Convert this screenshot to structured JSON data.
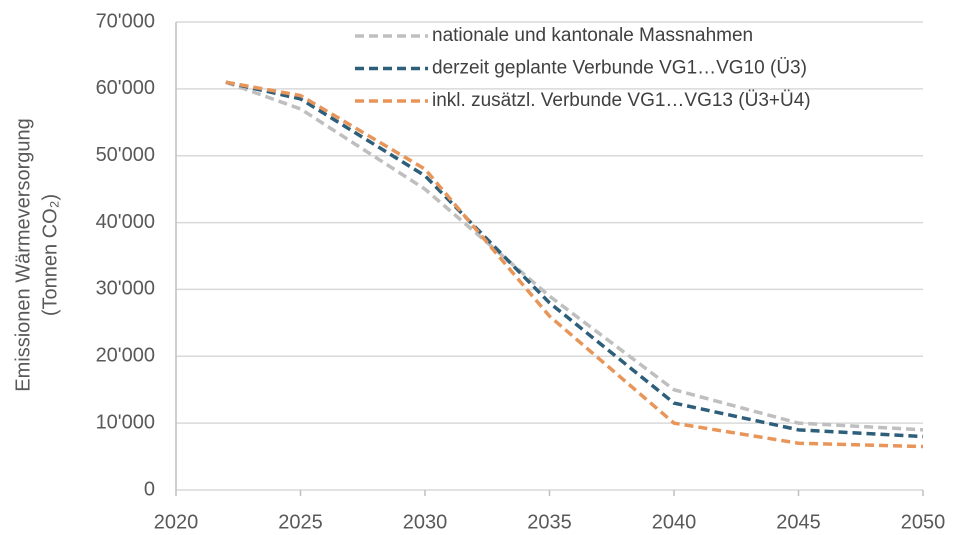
{
  "chart_data": {
    "type": "line",
    "ylabel": [
      "Emissionen Wärmeversorgung",
      "(Tonnen CO₂)"
    ],
    "x": [
      2022,
      2025,
      2030,
      2035,
      2040,
      2045,
      2050
    ],
    "series": [
      {
        "name": "nationale und kantonale Massnahmen",
        "color": "#bfbfbf",
        "values": [
          61000,
          57000,
          45000,
          29000,
          15000,
          10000,
          9000
        ]
      },
      {
        "name": "derzeit geplante Verbunde VG1…VG10 (Ü3)",
        "color": "#2e5f7a",
        "values": [
          61000,
          58500,
          47000,
          28000,
          13000,
          9000,
          8000
        ]
      },
      {
        "name": "inkl. zusätzl. Verbunde VG1…VG13 (Ü3+Ü4)",
        "color": "#e8955a",
        "values": [
          61000,
          59000,
          48000,
          26000,
          10000,
          7000,
          6500
        ]
      }
    ],
    "xlim": [
      2020,
      2050
    ],
    "xticks": [
      2020,
      2025,
      2030,
      2035,
      2040,
      2045,
      2050
    ],
    "ylim": [
      0,
      70000
    ],
    "yticks": [
      0,
      {
        "value": 10000,
        "label": "10'000"
      },
      {
        "value": 20000,
        "label": "20'000"
      },
      {
        "value": 30000,
        "label": "30'000"
      },
      {
        "value": 40000,
        "label": "40'000"
      },
      {
        "value": 50000,
        "label": "50'000"
      },
      {
        "value": 60000,
        "label": "60'000"
      },
      {
        "value": 70000,
        "label": "70'000"
      }
    ],
    "grid": true,
    "legend": "top-right"
  }
}
